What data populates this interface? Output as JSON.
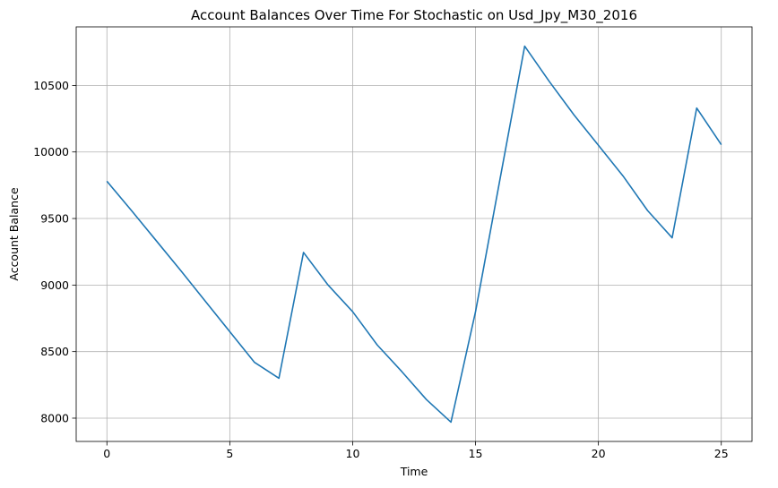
{
  "chart_data": {
    "type": "line",
    "title": "Account Balances Over Time For Stochastic on Usd_Jpy_M30_2016",
    "xlabel": "Time",
    "ylabel": "Account Balance",
    "xlim": [
      -1.25,
      26.25
    ],
    "ylim": [
      7825,
      10940
    ],
    "xticks": [
      0,
      5,
      10,
      15,
      20,
      25
    ],
    "yticks": [
      8000,
      8500,
      9000,
      9500,
      10000,
      10500
    ],
    "grid": true,
    "line_color": "#1f77b4",
    "series": [
      {
        "x": [
          0,
          1,
          2,
          3,
          4,
          5,
          6,
          7,
          8,
          9,
          10,
          11,
          12,
          13,
          14,
          15,
          16,
          17,
          18,
          19,
          20,
          21,
          22,
          23,
          24,
          25
        ],
        "values": [
          9780,
          9560,
          9335,
          9110,
          8880,
          8650,
          8420,
          8300,
          9245,
          9000,
          8800,
          8550,
          8350,
          8140,
          7970,
          8800,
          9800,
          10795,
          10530,
          10280,
          10050,
          9820,
          9560,
          9355,
          10330,
          10055
        ]
      }
    ]
  }
}
